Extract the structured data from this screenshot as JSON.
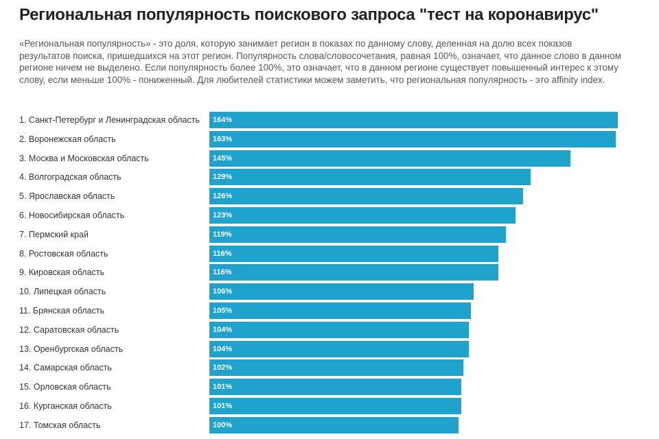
{
  "chart_data": {
    "type": "bar",
    "orientation": "horizontal",
    "title": "Региональная популярность поискового запроса \"тест на коронавирус\"",
    "subtitle": "«Региональная популярность» - это доля, которую занимает регион в показах по данному слову, деленная на долю всех показов результатов поиска, пришедшихся на этот регион. Популярность слова/словосочетания, равная 100%, означает, что данное слово в данном регионе ничем не выделено. Если популярность более 100%, это означает, что в данном регионе существует повышенный интерес к этому слову, если меньше 100% - пониженный. Для любителей статистики можем заметить, что региональная популярность - это affinity index.",
    "categories": [
      "1. Санкт-Петербург и Ленинградская область",
      "2. Воронежская область",
      "3. Москва и Московская область",
      "4. Волгоградская область",
      "5. Ярославская область",
      "6. Новосибирская область",
      "7. Пермский край",
      "8. Ростовская область",
      "9. Кировская область",
      "10. Липецкая область",
      "11. Брянская область",
      "12. Саратовская область",
      "13. Оренбургская область",
      "14. Самарская область",
      "15. Орловская область",
      "16. Курганская область",
      "17. Томская область"
    ],
    "values": [
      164,
      163,
      145,
      129,
      126,
      123,
      119,
      116,
      116,
      106,
      105,
      104,
      104,
      102,
      101,
      101,
      100
    ],
    "value_labels": [
      "164%",
      "163%",
      "145%",
      "129%",
      "126%",
      "123%",
      "119%",
      "116%",
      "116%",
      "106%",
      "105%",
      "104%",
      "104%",
      "102%",
      "101%",
      "101%",
      "100%"
    ],
    "bar_color": "#1fa2cb",
    "grid": false,
    "legend": "none"
  }
}
